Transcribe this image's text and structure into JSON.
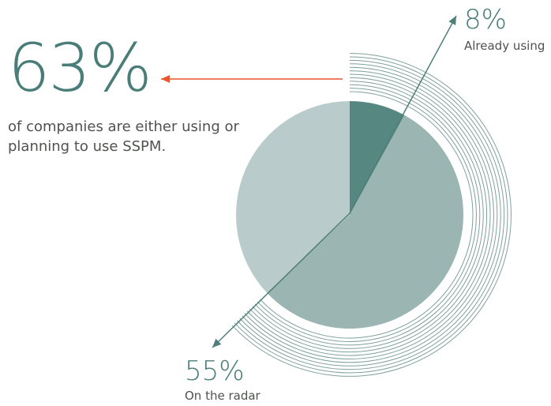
{
  "headline": {
    "value": "63%",
    "caption": "of companies are either using or planning to use SSPM."
  },
  "colors": {
    "dark_teal": "#578781",
    "mid_teal": "#9ab5b2",
    "light_teal": "#b9cccb",
    "ring_stroke": "#7fa09b",
    "arrow_teal": "#4f7f79",
    "arrow_orange": "#e8572f",
    "headline_text": "#4a7d77",
    "body_text": "#4f524f"
  },
  "chart_data": {
    "type": "pie",
    "slices": [
      {
        "value": 8,
        "value_label": "8%",
        "label": "Already using"
      },
      {
        "value": 55,
        "value_label": "55%",
        "label": "On the radar"
      },
      {
        "value": 37,
        "value_label": "",
        "label": ""
      }
    ],
    "highlight_total": 63,
    "highlight_ring_count": 12
  }
}
